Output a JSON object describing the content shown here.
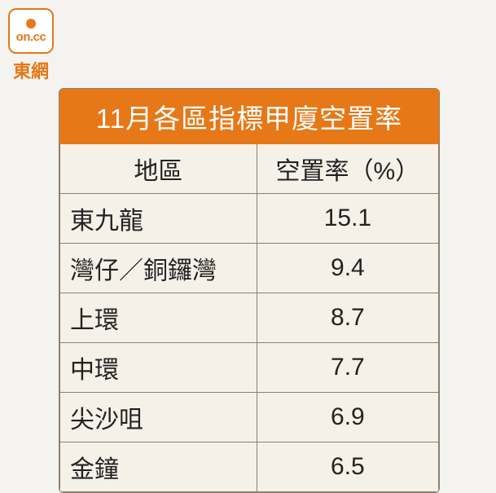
{
  "logo": {
    "text": "on.cc",
    "label": "東網"
  },
  "table": {
    "title": "11月各區指標甲廈空置率",
    "columns": [
      "地區",
      "空置率（%）"
    ],
    "rows": [
      [
        "東九龍",
        "15.1"
      ],
      [
        "灣仔／銅鑼灣",
        "9.4"
      ],
      [
        "上環",
        "8.7"
      ],
      [
        "中環",
        "7.7"
      ],
      [
        "尖沙咀",
        "6.9"
      ],
      [
        "金鐘",
        "6.5"
      ]
    ],
    "colors": {
      "header_bg": "#e67817",
      "header_text": "#ffffff",
      "cell_bg": "#f5f1e8",
      "cell_text": "#222222",
      "border": "#8a8070",
      "page_bg": "#f5f3ef"
    },
    "font_sizes": {
      "title": 33,
      "cell": 30
    }
  }
}
